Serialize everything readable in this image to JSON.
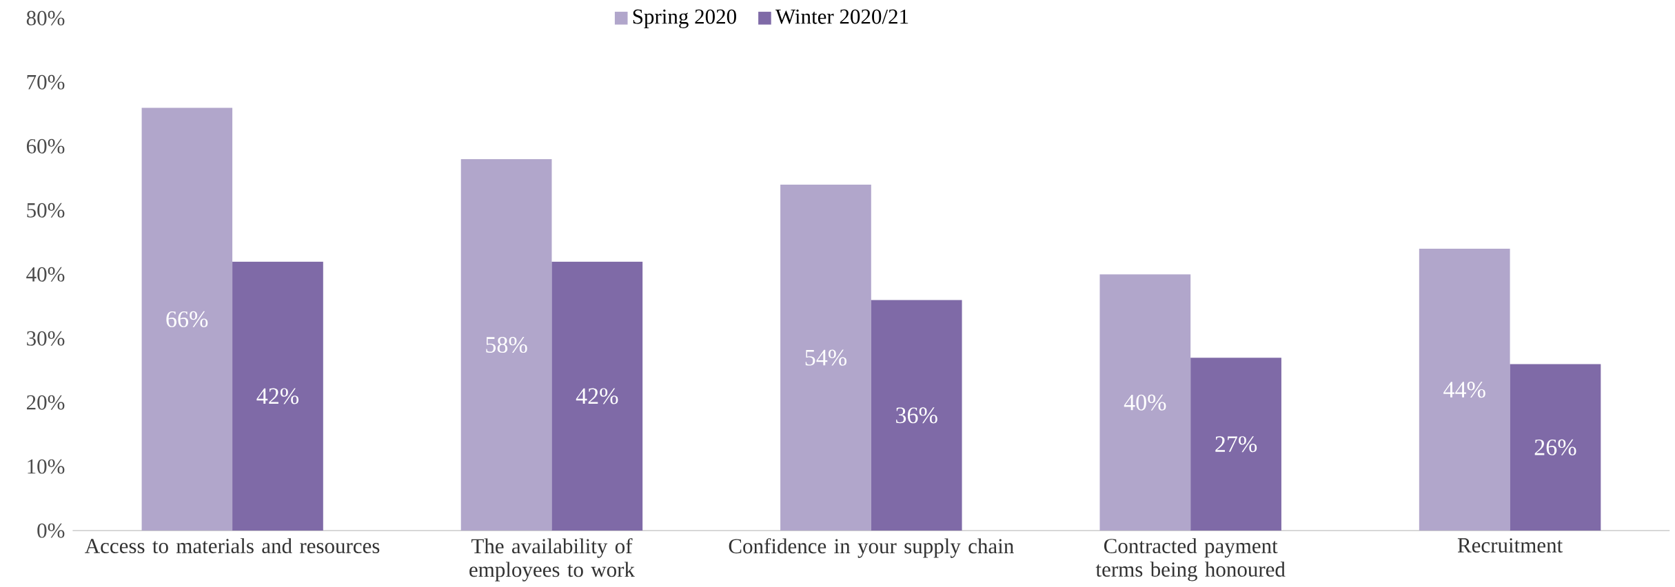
{
  "chart_data": {
    "type": "bar",
    "categories": [
      "Access to materials and resources",
      "The availability of employees to work",
      "Confidence in your supply chain",
      "Contracted payment terms being honoured",
      "Recruitment"
    ],
    "series": [
      {
        "name": "Spring 2020",
        "color": "#b1a6cb",
        "values": [
          66,
          58,
          54,
          40,
          44
        ],
        "value_labels": [
          "66%",
          "58%",
          "54%",
          "40%",
          "44%"
        ]
      },
      {
        "name": "Winter 2020/21",
        "color": "#7f6aa7",
        "values": [
          42,
          42,
          36,
          27,
          26
        ],
        "value_labels": [
          "42%",
          "42%",
          "36%",
          "27%",
          "26%"
        ]
      }
    ],
    "ylim": [
      0,
      80
    ],
    "yticks": [
      {
        "value": 0,
        "label": "0%"
      },
      {
        "value": 10,
        "label": "10%"
      },
      {
        "value": 20,
        "label": "20%"
      },
      {
        "value": 30,
        "label": "30%"
      },
      {
        "value": 40,
        "label": "40%"
      },
      {
        "value": 50,
        "label": "50%"
      },
      {
        "value": 60,
        "label": "60%"
      },
      {
        "value": 70,
        "label": "70%"
      },
      {
        "value": 80,
        "label": "80%"
      }
    ],
    "legend": "top"
  }
}
